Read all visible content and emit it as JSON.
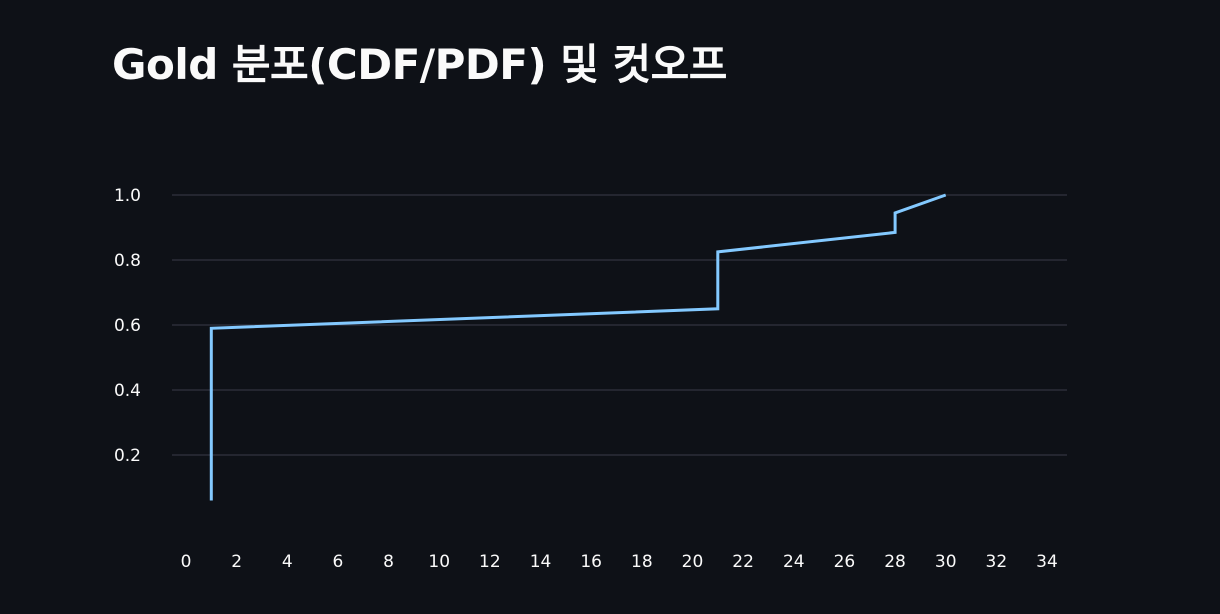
{
  "page": {
    "title": "Gold 분포(CDF/PDF) 및 컷오프"
  },
  "colors": {
    "background": "#0e1117",
    "text": "#fafafa",
    "grid": "#31333f",
    "series": "#83c9ff"
  },
  "chart_data": {
    "type": "line",
    "title": "",
    "xlabel": "",
    "ylabel": "",
    "xlim": [
      0,
      34
    ],
    "ylim": [
      0,
      1.0
    ],
    "grid": "horizontal",
    "x_ticks": [
      0,
      2,
      4,
      6,
      8,
      10,
      12,
      14,
      16,
      18,
      20,
      22,
      24,
      26,
      28,
      30,
      32,
      34
    ],
    "y_ticks": [
      0.2,
      0.4,
      0.6,
      0.8,
      1.0
    ],
    "x_tick_labels": [
      "0",
      "2",
      "4",
      "6",
      "8",
      "10",
      "12",
      "14",
      "16",
      "18",
      "20",
      "22",
      "24",
      "26",
      "28",
      "30",
      "32",
      "34"
    ],
    "y_tick_labels": [
      "0.2",
      "0.4",
      "0.6",
      "0.8",
      "1.0"
    ],
    "series": [
      {
        "points": [
          {
            "x": 1,
            "y": 0.06
          },
          {
            "x": 1,
            "y": 0.59
          },
          {
            "x": 21,
            "y": 0.65
          },
          {
            "x": 21,
            "y": 0.825
          },
          {
            "x": 28,
            "y": 0.885
          },
          {
            "x": 28,
            "y": 0.945
          },
          {
            "x": 30,
            "y": 1.0
          }
        ]
      }
    ]
  }
}
